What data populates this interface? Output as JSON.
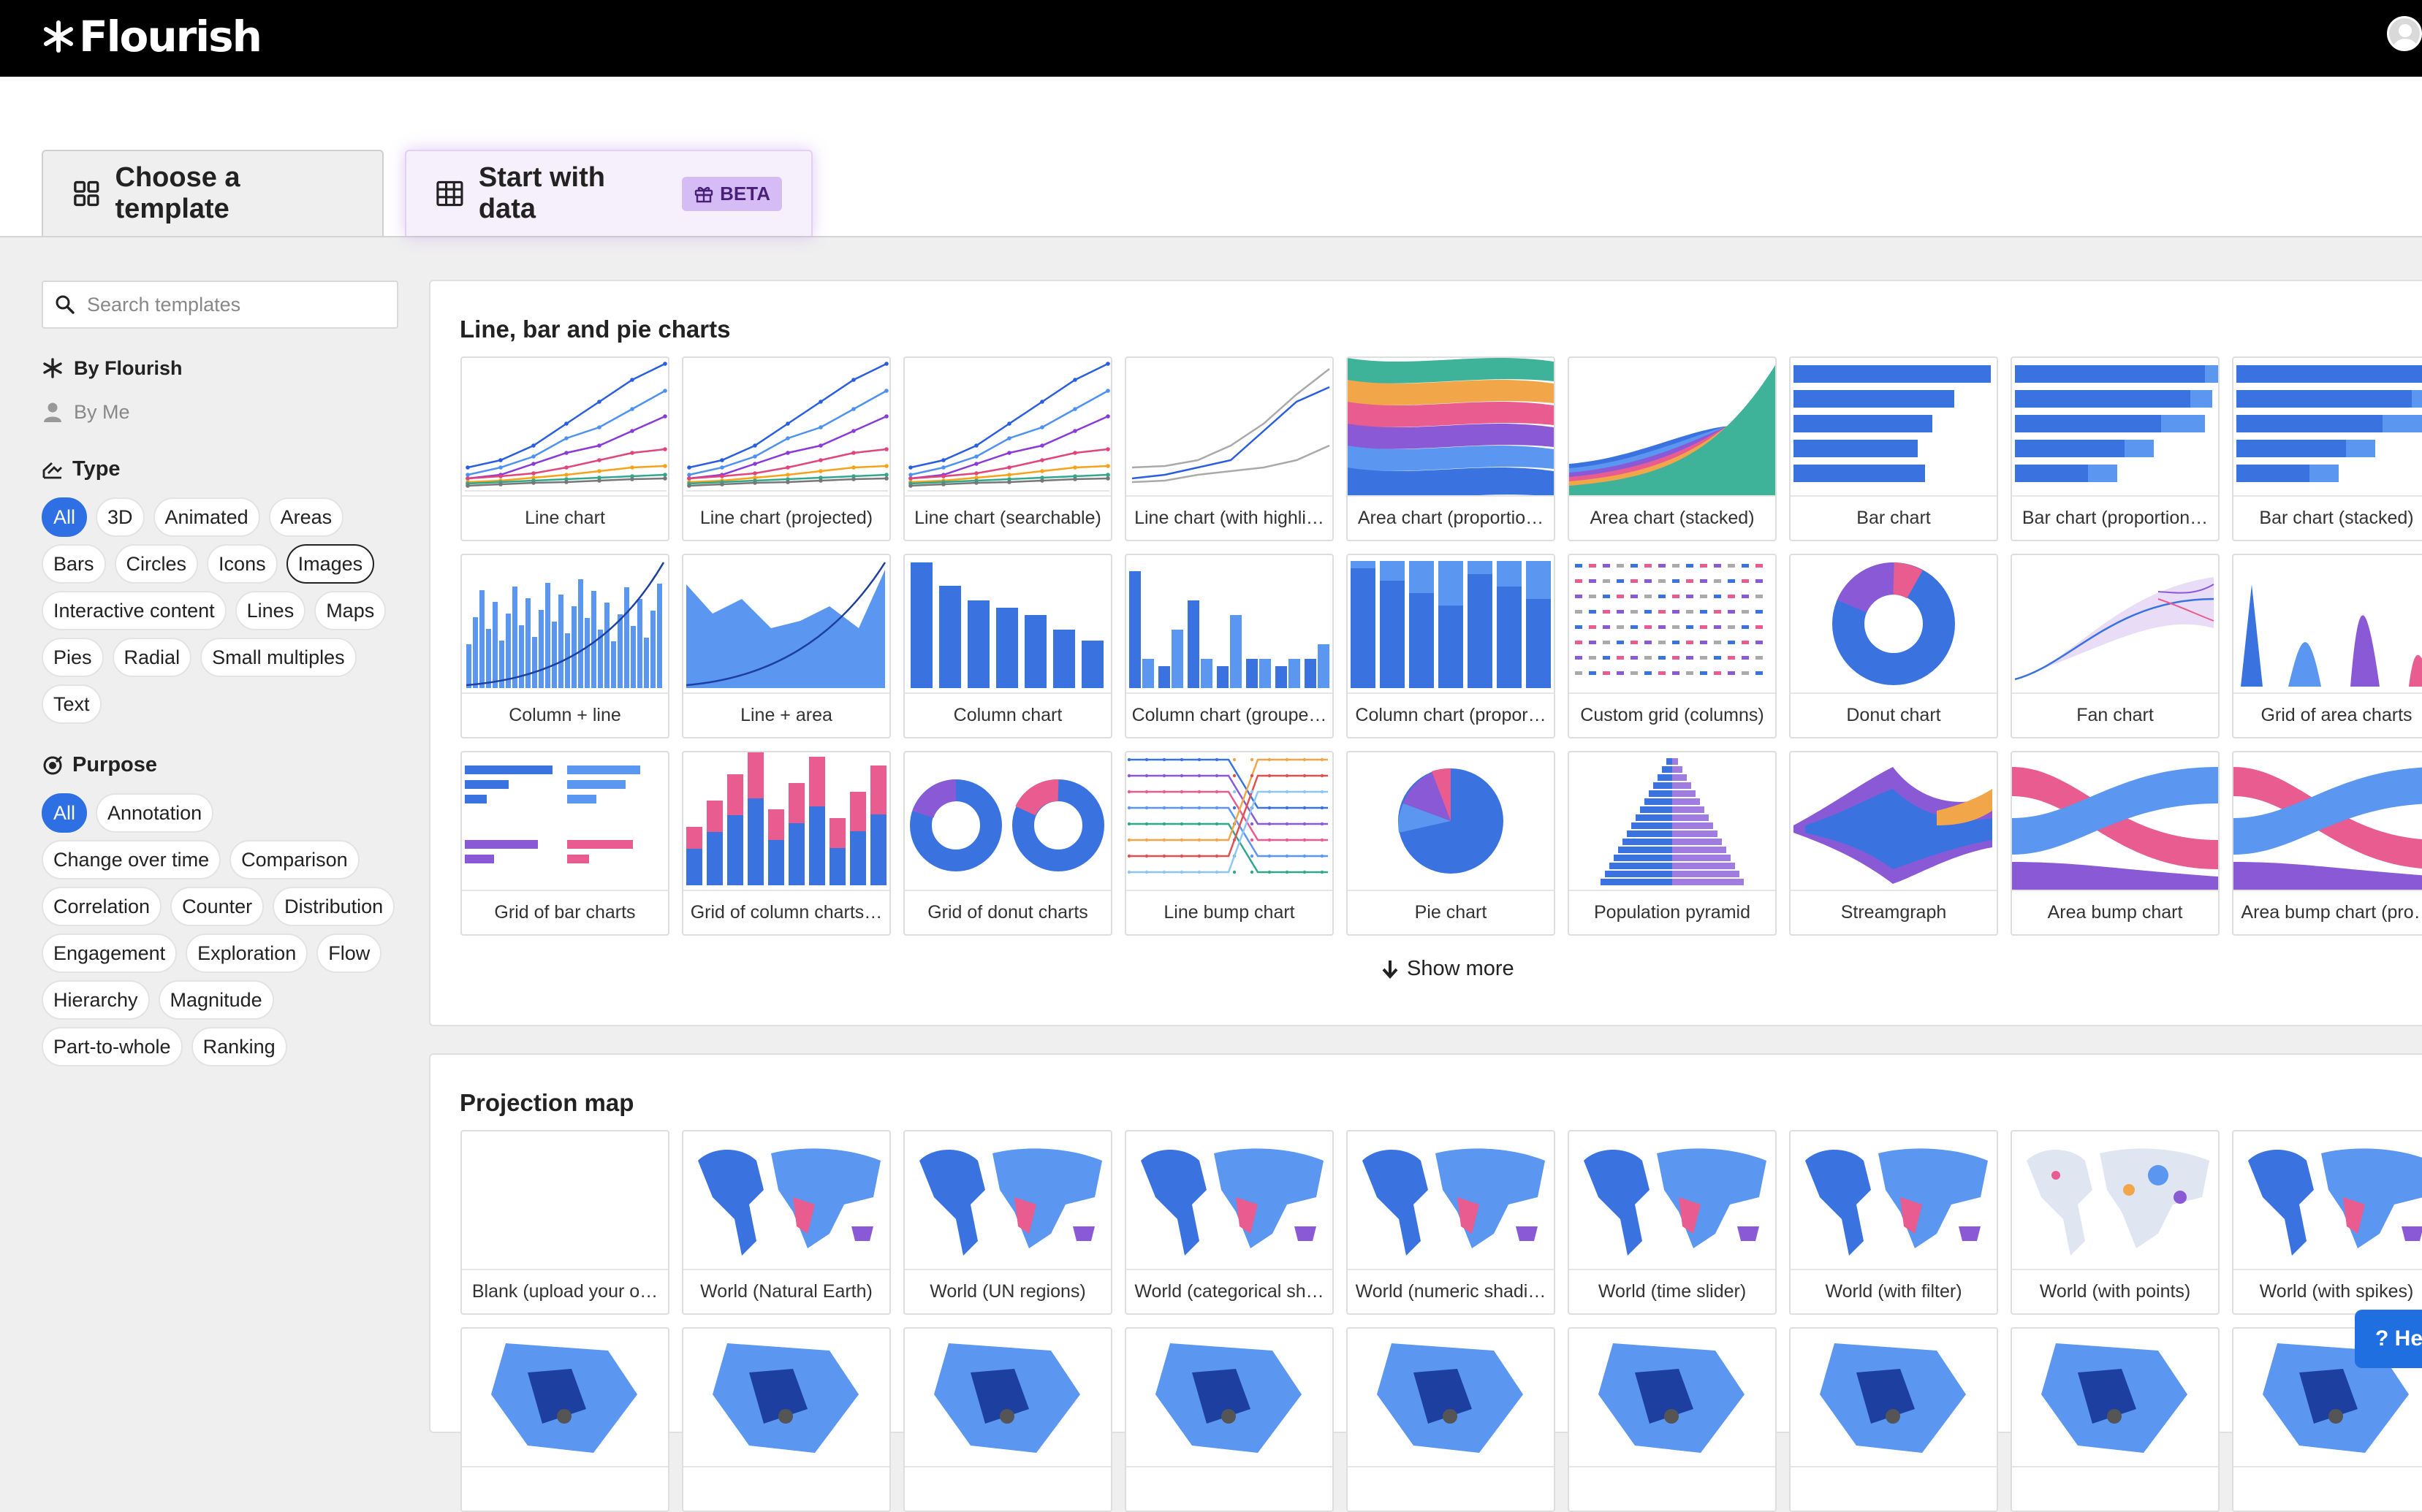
{
  "app": {
    "logo_text": "Flourish"
  },
  "tabs": {
    "template_label": "Choose a template",
    "data_label": "Start with data",
    "beta_badge": "BETA"
  },
  "sidebar": {
    "search_placeholder": "Search templates",
    "owners": {
      "flourish": "By Flourish",
      "me": "By Me"
    },
    "type_heading": "Type",
    "type_filters": [
      "All",
      "3D",
      "Animated",
      "Areas",
      "Bars",
      "Circles",
      "Icons",
      "Images",
      "Interactive content",
      "Lines",
      "Maps",
      "Pies",
      "Radial",
      "Small multiples",
      "Text"
    ],
    "purpose_heading": "Purpose",
    "purpose_filters": [
      "All",
      "Annotation",
      "Change over time",
      "Comparison",
      "Correlation",
      "Counter",
      "Distribution",
      "Engagement",
      "Exploration",
      "Flow",
      "Hierarchy",
      "Magnitude",
      "Part-to-whole",
      "Ranking"
    ]
  },
  "sections": [
    {
      "title": "Line, bar and pie charts",
      "templates": [
        {
          "label": "Line chart",
          "thumb": "line"
        },
        {
          "label": "Line chart (projected)",
          "thumb": "line"
        },
        {
          "label": "Line chart (searchable)",
          "thumb": "line"
        },
        {
          "label": "Line chart (with highli…",
          "thumb": "line-highlight"
        },
        {
          "label": "Area chart (proportio…",
          "thumb": "area-prop"
        },
        {
          "label": "Area chart (stacked)",
          "thumb": "area-stacked"
        },
        {
          "label": "Bar chart",
          "thumb": "bar"
        },
        {
          "label": "Bar chart (proportion…",
          "thumb": "bar-stacked"
        },
        {
          "label": "Bar chart (stacked)",
          "thumb": "bar-stacked"
        },
        {
          "label": "Column + line",
          "thumb": "column-line"
        },
        {
          "label": "Line + area",
          "thumb": "line-area"
        },
        {
          "label": "Column chart",
          "thumb": "column"
        },
        {
          "label": "Column chart (groupe…",
          "thumb": "column-grouped"
        },
        {
          "label": "Column chart (propor…",
          "thumb": "column-prop"
        },
        {
          "label": "Custom grid (columns)",
          "thumb": "custom-grid"
        },
        {
          "label": "Donut chart",
          "thumb": "donut"
        },
        {
          "label": "Fan chart",
          "thumb": "fan"
        },
        {
          "label": "Grid of area charts",
          "thumb": "grid-area"
        },
        {
          "label": "Grid of bar charts",
          "thumb": "grid-bar"
        },
        {
          "label": "Grid of column charts…",
          "thumb": "grid-column"
        },
        {
          "label": "Grid of donut charts",
          "thumb": "grid-donut"
        },
        {
          "label": "Line bump chart",
          "thumb": "bump"
        },
        {
          "label": "Pie chart",
          "thumb": "pie"
        },
        {
          "label": "Population pyramid",
          "thumb": "pyramid"
        },
        {
          "label": "Streamgraph",
          "thumb": "stream"
        },
        {
          "label": "Area bump chart",
          "thumb": "area-bump"
        },
        {
          "label": "Area bump chart (pro…",
          "thumb": "area-bump"
        }
      ],
      "show_more": "Show more"
    },
    {
      "title": "Projection map",
      "templates": [
        {
          "label": "Blank (upload your o…",
          "thumb": "blank"
        },
        {
          "label": "World (Natural Earth)",
          "thumb": "map"
        },
        {
          "label": "World (UN regions)",
          "thumb": "map"
        },
        {
          "label": "World (categorical sh…",
          "thumb": "map"
        },
        {
          "label": "World (numeric shadi…",
          "thumb": "map"
        },
        {
          "label": "World (time slider)",
          "thumb": "map"
        },
        {
          "label": "World (with filter)",
          "thumb": "map"
        },
        {
          "label": "World (with points)",
          "thumb": "map-points"
        },
        {
          "label": "World (with spikes)",
          "thumb": "map"
        },
        {
          "label": "",
          "thumb": "region"
        },
        {
          "label": "",
          "thumb": "region"
        },
        {
          "label": "",
          "thumb": "region"
        },
        {
          "label": "",
          "thumb": "region"
        },
        {
          "label": "",
          "thumb": "region"
        },
        {
          "label": "",
          "thumb": "region"
        },
        {
          "label": "",
          "thumb": "region"
        },
        {
          "label": "",
          "thumb": "region"
        },
        {
          "label": "",
          "thumb": "region"
        }
      ]
    }
  ],
  "help_button": "? He",
  "colors": {
    "accent": "#2f6fe4",
    "beta_bg": "#d6bcf5",
    "topbar": "#000000"
  }
}
